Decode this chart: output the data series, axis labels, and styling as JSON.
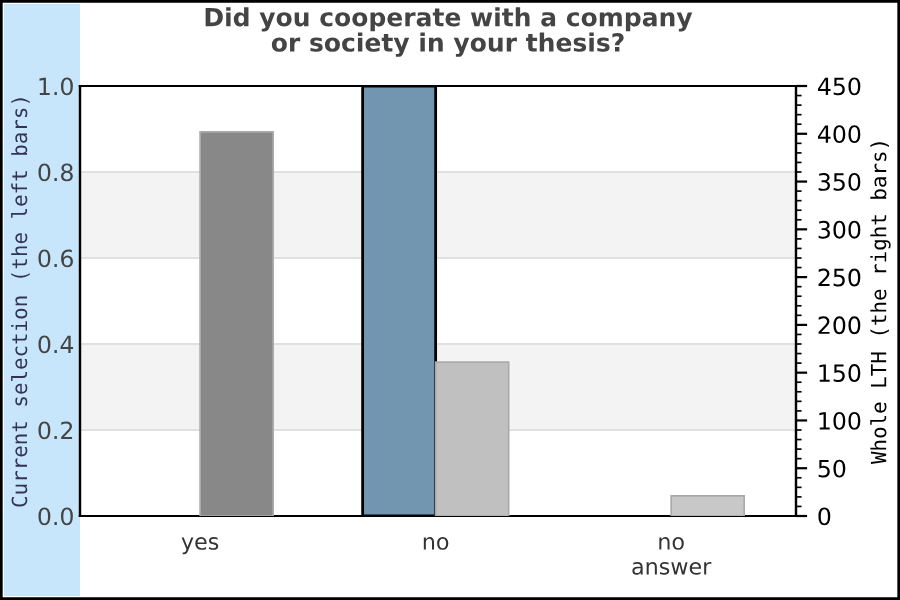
{
  "chart_data": {
    "type": "bar",
    "title": "Did you cooperate with a company\nor society in your thesis?",
    "categories": [
      "yes",
      "no",
      "no\nanswer"
    ],
    "series": [
      {
        "color": "#7295b0",
        "values": [
          0,
          1.0,
          0
        ]
      },
      {
        "colors": [
          "#888888",
          "#c0c0c0",
          "#c8c8c8"
        ],
        "values": [
          402,
          161,
          21
        ],
        "axis": "y2"
      }
    ],
    "ylabel": "Current selection (the left bars)",
    "y2label": "Whole LTH (the right bars)",
    "ylim": [
      0,
      1.0
    ],
    "yticks": [
      {
        "value": 0,
        "label": "0.0"
      },
      0.2,
      0.4,
      0.6,
      0.8,
      {
        "value": 1,
        "label": "1.0"
      }
    ],
    "y2lim": [
      0,
      450
    ],
    "y2ticks": [
      0,
      50,
      100,
      150,
      200,
      250,
      300,
      350,
      400,
      450
    ],
    "bands": [
      {
        "axis": "y",
        "from": 0.2,
        "to": 0.4,
        "color": "#f3f3f3"
      },
      {
        "axis": "y",
        "from": 0.6,
        "to": 0.8,
        "color": "#f3f3f3"
      }
    ],
    "grid": "y",
    "legend": false
  }
}
